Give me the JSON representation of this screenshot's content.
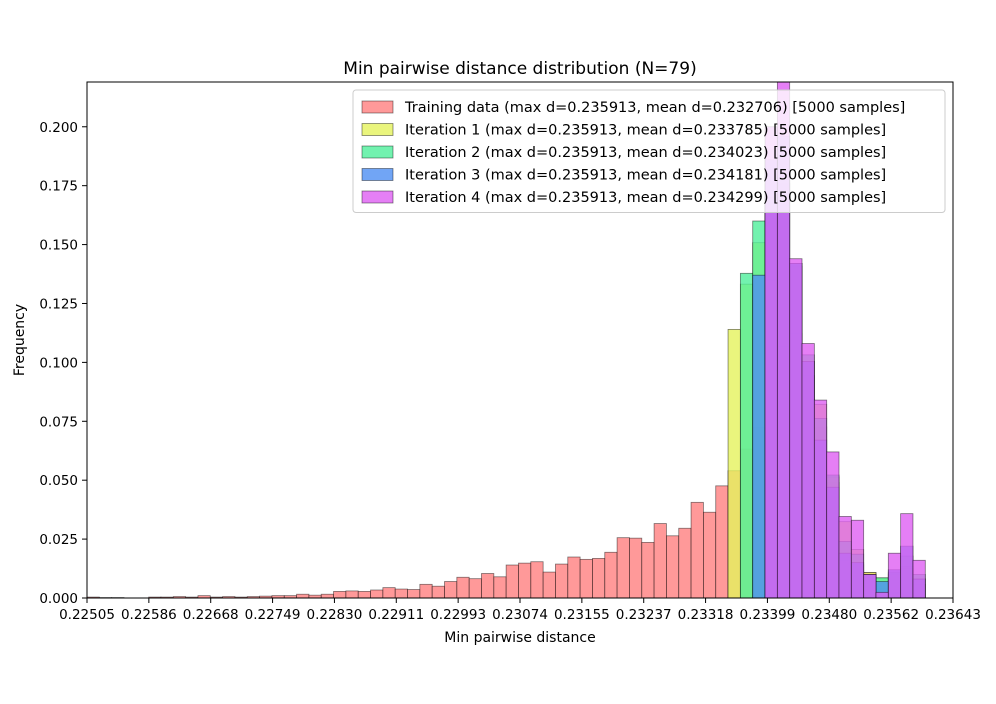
{
  "chart_data": {
    "type": "histogram",
    "title": "Min pairwise distance distribution (N=79)",
    "xlabel": "Min pairwise distance",
    "ylabel": "Frequency",
    "xlim": [
      0.22505,
      0.23643
    ],
    "ylim": [
      0,
      0.219
    ],
    "bin_width": 0.000162,
    "x_tick_labels": [
      "0.22505",
      "0.22586",
      "0.22668",
      "0.22749",
      "0.22830",
      "0.22911",
      "0.22993",
      "0.23074",
      "0.23155",
      "0.23237",
      "0.23318",
      "0.23399",
      "0.23480",
      "0.23562",
      "0.23643"
    ],
    "y_tick_values": [
      0,
      0.025,
      0.05,
      0.075,
      0.1,
      0.125,
      0.15,
      0.175,
      0.2
    ],
    "y_tick_labels": [
      "0.000",
      "0.025",
      "0.050",
      "0.075",
      "0.100",
      "0.125",
      "0.150",
      "0.175",
      "0.200"
    ],
    "legend_position": "top-right",
    "series": [
      {
        "name": "Training data (max d=0.235913, mean d=0.232706) [5000 samples]",
        "color": "#ff7f7f",
        "bins": [
          [
            0.22505,
            0.225212,
            0.0004
          ],
          [
            0.225212,
            0.225374,
            0.0002
          ],
          [
            0.225374,
            0.225536,
            0.0002
          ],
          [
            0.225536,
            0.225698,
            0.0
          ],
          [
            0.225698,
            0.22586,
            0.0
          ],
          [
            0.22586,
            0.226022,
            0.0004
          ],
          [
            0.226022,
            0.226184,
            0.0004
          ],
          [
            0.226184,
            0.226346,
            0.0006
          ],
          [
            0.226346,
            0.226508,
            0.0004
          ],
          [
            0.226508,
            0.22667,
            0.001
          ],
          [
            0.22667,
            0.226832,
            0.0004
          ],
          [
            0.226832,
            0.226994,
            0.0006
          ],
          [
            0.226994,
            0.227156,
            0.0004
          ],
          [
            0.227156,
            0.227318,
            0.0006
          ],
          [
            0.227318,
            0.22748,
            0.0008
          ],
          [
            0.22748,
            0.227642,
            0.001
          ],
          [
            0.227642,
            0.227804,
            0.001
          ],
          [
            0.227804,
            0.227966,
            0.0016
          ],
          [
            0.227966,
            0.228128,
            0.0012
          ],
          [
            0.228128,
            0.22829,
            0.0016
          ],
          [
            0.22829,
            0.228452,
            0.0028
          ],
          [
            0.228452,
            0.228614,
            0.003
          ],
          [
            0.228614,
            0.228776,
            0.0028
          ],
          [
            0.228776,
            0.228938,
            0.0034
          ],
          [
            0.228938,
            0.2291,
            0.0044
          ],
          [
            0.2291,
            0.229262,
            0.0038
          ],
          [
            0.229262,
            0.229424,
            0.0036
          ],
          [
            0.229424,
            0.229586,
            0.0058
          ],
          [
            0.229586,
            0.229748,
            0.005
          ],
          [
            0.229748,
            0.22991,
            0.007
          ],
          [
            0.22991,
            0.230072,
            0.0088
          ],
          [
            0.230072,
            0.230234,
            0.0082
          ],
          [
            0.230234,
            0.230396,
            0.0104
          ],
          [
            0.230396,
            0.230558,
            0.009
          ],
          [
            0.230558,
            0.23072,
            0.014
          ],
          [
            0.23072,
            0.230882,
            0.0148
          ],
          [
            0.230882,
            0.231044,
            0.0154
          ],
          [
            0.231044,
            0.231206,
            0.011
          ],
          [
            0.231206,
            0.231368,
            0.0144
          ],
          [
            0.231368,
            0.23153,
            0.0174
          ],
          [
            0.23153,
            0.231692,
            0.0164
          ],
          [
            0.231692,
            0.231854,
            0.0168
          ],
          [
            0.231854,
            0.232016,
            0.0194
          ],
          [
            0.232016,
            0.232178,
            0.0256
          ],
          [
            0.232178,
            0.23234,
            0.0254
          ],
          [
            0.23234,
            0.232502,
            0.0236
          ],
          [
            0.232502,
            0.232664,
            0.0316
          ],
          [
            0.232664,
            0.232826,
            0.0264
          ],
          [
            0.232826,
            0.232988,
            0.0296
          ],
          [
            0.232988,
            0.23315,
            0.0406
          ],
          [
            0.23315,
            0.233312,
            0.0364
          ],
          [
            0.233312,
            0.233474,
            0.0476
          ],
          [
            0.233474,
            0.233636,
            0.054
          ],
          [
            0.233636,
            0.233798,
            0.0632
          ],
          [
            0.233798,
            0.23396,
            0.0724
          ],
          [
            0.23396,
            0.234122,
            0.135
          ],
          [
            0.234122,
            0.234284,
            0.1068
          ],
          [
            0.234284,
            0.234446,
            0.1122
          ],
          [
            0.234446,
            0.234608,
            0.0944
          ],
          [
            0.234608,
            0.23477,
            0.0726
          ],
          [
            0.23477,
            0.234932,
            0.049
          ],
          [
            0.234932,
            0.235094,
            0.016
          ],
          [
            0.235094,
            0.235256,
            0.0142
          ],
          [
            0.235256,
            0.235418,
            0.0108
          ],
          [
            0.235418,
            0.23558,
            0.004
          ],
          [
            0.23558,
            0.235742,
            0.0022
          ],
          [
            0.235742,
            0.235904,
            0.0134
          ],
          [
            0.235904,
            0.236066,
            0.0058
          ]
        ]
      },
      {
        "name": "Iteration 1 (max d=0.235913, mean d=0.233785) [5000 samples]",
        "color": "#e5f25c",
        "bins": [
          [
            0.233474,
            0.233636,
            0.114
          ],
          [
            0.233636,
            0.233798,
            0.1332
          ],
          [
            0.233798,
            0.23396,
            0.1508
          ],
          [
            0.23396,
            0.234122,
            0.164
          ],
          [
            0.234122,
            0.234284,
            0.176
          ],
          [
            0.234284,
            0.234446,
            0.1408
          ],
          [
            0.234446,
            0.234608,
            0.1004
          ],
          [
            0.234608,
            0.23477,
            0.0822
          ],
          [
            0.23477,
            0.234932,
            0.0514
          ],
          [
            0.234932,
            0.235094,
            0.0324
          ],
          [
            0.235094,
            0.235256,
            0.0206
          ],
          [
            0.235256,
            0.235418,
            0.0108
          ],
          [
            0.235418,
            0.23558,
            0.0084
          ],
          [
            0.23558,
            0.235742,
            0.0102
          ],
          [
            0.235742,
            0.235904,
            0.0126
          ],
          [
            0.235904,
            0.236066,
            0.0082
          ]
        ]
      },
      {
        "name": "Iteration 2 (max d=0.235913, mean d=0.234023) [5000 samples]",
        "color": "#4fef9b",
        "bins": [
          [
            0.233636,
            0.233798,
            0.1378
          ],
          [
            0.233798,
            0.23396,
            0.16
          ],
          [
            0.23396,
            0.234122,
            0.17
          ],
          [
            0.234122,
            0.234284,
            0.186
          ],
          [
            0.234284,
            0.234446,
            0.142
          ],
          [
            0.234446,
            0.234608,
            0.1032
          ],
          [
            0.234608,
            0.23477,
            0.0762
          ],
          [
            0.23477,
            0.234932,
            0.0522
          ],
          [
            0.234932,
            0.235094,
            0.024
          ],
          [
            0.235094,
            0.235256,
            0.0186
          ],
          [
            0.235256,
            0.235418,
            0.01
          ],
          [
            0.235418,
            0.23558,
            0.0086
          ],
          [
            0.23558,
            0.235742,
            0.011
          ],
          [
            0.235742,
            0.235904,
            0.0178
          ],
          [
            0.235904,
            0.236066,
            0.01
          ]
        ]
      },
      {
        "name": "Iteration 3 (max d=0.235913, mean d=0.234181) [5000 samples]",
        "color": "#4e8ff2",
        "bins": [
          [
            0.233798,
            0.23396,
            0.137
          ],
          [
            0.23396,
            0.234122,
            0.186
          ],
          [
            0.234122,
            0.234284,
            0.196
          ],
          [
            0.234284,
            0.234446,
            0.142
          ],
          [
            0.234446,
            0.234608,
            0.1004
          ],
          [
            0.234608,
            0.23477,
            0.067
          ],
          [
            0.23477,
            0.234932,
            0.047
          ],
          [
            0.234932,
            0.235094,
            0.019
          ],
          [
            0.235094,
            0.235256,
            0.015
          ],
          [
            0.235256,
            0.235418,
            0.01
          ],
          [
            0.235418,
            0.23558,
            0.007
          ],
          [
            0.23558,
            0.235742,
            0.012
          ],
          [
            0.235742,
            0.235904,
            0.022
          ],
          [
            0.235904,
            0.236066,
            0.008
          ]
        ]
      },
      {
        "name": "Iteration 4 (max d=0.235913, mean d=0.234299) [5000 samples]",
        "color": "#df5ff2",
        "bins": [
          [
            0.23396,
            0.234122,
            0.2
          ],
          [
            0.234122,
            0.234284,
            0.2192
          ],
          [
            0.234284,
            0.234446,
            0.144
          ],
          [
            0.234446,
            0.234608,
            0.108
          ],
          [
            0.234608,
            0.23477,
            0.084
          ],
          [
            0.23477,
            0.234932,
            0.062
          ],
          [
            0.234932,
            0.235094,
            0.0346
          ],
          [
            0.235094,
            0.235256,
            0.033
          ],
          [
            0.235256,
            0.235418,
            0.01
          ],
          [
            0.235418,
            0.23558,
            0.0024
          ],
          [
            0.23558,
            0.235742,
            0.019
          ],
          [
            0.235742,
            0.235904,
            0.0358
          ],
          [
            0.235904,
            0.236066,
            0.016
          ]
        ]
      }
    ]
  }
}
